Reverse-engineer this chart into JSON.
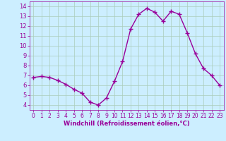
{
  "x": [
    0,
    1,
    2,
    3,
    4,
    5,
    6,
    7,
    8,
    9,
    10,
    11,
    12,
    13,
    14,
    15,
    16,
    17,
    18,
    19,
    20,
    21,
    22,
    23
  ],
  "y": [
    6.8,
    6.9,
    6.8,
    6.5,
    6.1,
    5.6,
    5.2,
    4.3,
    4.0,
    4.7,
    6.4,
    8.4,
    11.7,
    13.2,
    13.8,
    13.4,
    12.5,
    13.5,
    13.2,
    11.3,
    9.2,
    7.7,
    7.0,
    6.0
  ],
  "line_color": "#990099",
  "marker": "+",
  "markersize": 4,
  "linewidth": 1.0,
  "bg_color": "#cceeff",
  "grid_color": "#aaccbb",
  "xlabel": "Windchill (Refroidissement éolien,°C)",
  "xlabel_color": "#990099",
  "tick_color": "#990099",
  "xlim": [
    -0.5,
    23.5
  ],
  "ylim": [
    3.5,
    14.5
  ],
  "yticks": [
    4,
    5,
    6,
    7,
    8,
    9,
    10,
    11,
    12,
    13,
    14
  ],
  "xticks": [
    0,
    1,
    2,
    3,
    4,
    5,
    6,
    7,
    8,
    9,
    10,
    11,
    12,
    13,
    14,
    15,
    16,
    17,
    18,
    19,
    20,
    21,
    22,
    23
  ],
  "xlabel_fontsize": 6.0,
  "tick_fontsize_x": 5.5,
  "tick_fontsize_y": 6.0
}
